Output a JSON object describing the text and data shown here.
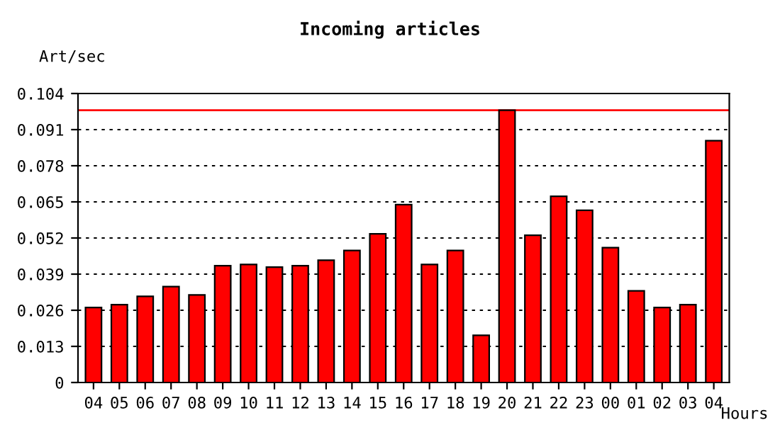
{
  "chart_data": {
    "type": "bar",
    "title": "Incoming articles",
    "ylabel": "Art/sec",
    "xlabel": "Hours",
    "categories": [
      "04",
      "05",
      "06",
      "07",
      "08",
      "09",
      "10",
      "11",
      "12",
      "13",
      "14",
      "15",
      "16",
      "17",
      "18",
      "19",
      "20",
      "21",
      "22",
      "23",
      "00",
      "01",
      "02",
      "03",
      "04"
    ],
    "values": [
      0.027,
      0.028,
      0.031,
      0.0345,
      0.0315,
      0.042,
      0.0425,
      0.0415,
      0.042,
      0.044,
      0.0475,
      0.0535,
      0.064,
      0.0425,
      0.0475,
      0.017,
      0.098,
      0.053,
      0.067,
      0.062,
      0.0485,
      0.033,
      0.027,
      0.028,
      0.087
    ],
    "color": "#ff0000",
    "ylim": [
      0,
      0.104
    ],
    "yticks": [
      {
        "value": 0,
        "label": "0"
      },
      0.013,
      0.026,
      0.039,
      0.052,
      0.065,
      0.078,
      0.091,
      0.104
    ],
    "ref_lines": [
      {
        "axis": "y",
        "value": 0.098,
        "color": "#ff0000"
      }
    ],
    "grid": "y"
  }
}
